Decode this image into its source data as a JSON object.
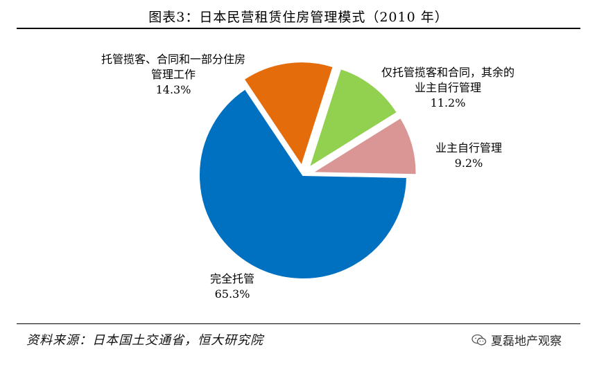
{
  "title": "图表3：日本民营租赁住房管理模式（2010 年）",
  "source": "资料来源：日本国土交通省，恒大研究院",
  "brand": "夏磊地产观察",
  "colors": {
    "full": "#0070C0",
    "agency": "#E46C0A",
    "tenant": "#92D050",
    "self": "#D99694"
  },
  "chart_data": {
    "type": "pie",
    "unit": "%",
    "slices": [
      {
        "key": "full",
        "label": "完全托管",
        "label_lines": [
          "完全托管"
        ],
        "value_label": "65.3%",
        "value": 65.3,
        "exploded": false
      },
      {
        "key": "agency",
        "label": "托管揽客、合同和一部分住房管理工作",
        "label_lines": [
          "托管揽客、合同和一部分住房",
          "管理工作"
        ],
        "value_label": "14.3%",
        "value": 14.3,
        "exploded": true
      },
      {
        "key": "tenant",
        "label": "仅托管揽客和合同，其余的业主自行管理",
        "label_lines": [
          "仅托管揽客和合同，其余的",
          "业主自行管理"
        ],
        "value_label": "11.2%",
        "value": 11.2,
        "exploded": true
      },
      {
        "key": "self",
        "label": "业主自行管理",
        "label_lines": [
          "业主自行管理"
        ],
        "value_label": "9.2%",
        "value": 9.2,
        "exploded": true
      }
    ]
  }
}
